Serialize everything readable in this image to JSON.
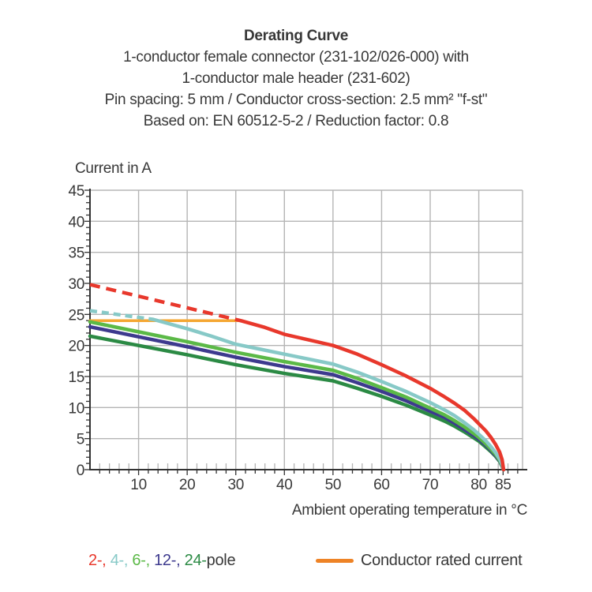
{
  "header": {
    "title": "Derating Curve",
    "lines": [
      "1-conductor female connector (231-102/026-000) with",
      "1-conductor male header (231-602)",
      "Pin spacing: 5 mm / Conductor cross-section: 2.5 mm² \"f-st\"",
      "Based on: EN 60512-5-2 / Reduction factor: 0.8"
    ]
  },
  "axes": {
    "y_title": "Current in A",
    "x_title": "Ambient operating temperature in °C"
  },
  "legend": {
    "poles": [
      {
        "label": "2-",
        "color": "#E8382C"
      },
      {
        "label": "4-",
        "color": "#87C9C7"
      },
      {
        "label": "6-",
        "color": "#5BB947"
      },
      {
        "label": "12-",
        "color": "#3D3A8E"
      },
      {
        "label": "24-",
        "color": "#2B8A44"
      }
    ],
    "separator": ", ",
    "poles_suffix": "pole",
    "rated_label": "Conductor rated current",
    "rated_swatch_color": "#EE8326"
  },
  "chart_data": {
    "type": "line",
    "title": "Derating Curve",
    "xlabel": "Ambient operating temperature in °C",
    "ylabel": "Current in A",
    "xlim": [
      0,
      89
    ],
    "ylim": [
      0,
      45
    ],
    "x_ticks": [
      10,
      20,
      30,
      40,
      50,
      60,
      70,
      80,
      85
    ],
    "x_gridlines": [
      10,
      20,
      30,
      40,
      50,
      60,
      70,
      80
    ],
    "x_minor_step": 2,
    "y_ticks": [
      0,
      5,
      10,
      15,
      20,
      25,
      30,
      35,
      40,
      45
    ],
    "y_minor_step": 1,
    "grid": true,
    "grid_color": "#B5B5B5",
    "axis_color": "#333333",
    "legend_position": "bottom",
    "series": [
      {
        "name": "Conductor rated current",
        "color": "#F5A733",
        "width": 3.5,
        "segments": [
          {
            "points": [
              [
                0,
                24
              ],
              [
                31,
                24
              ]
            ]
          }
        ]
      },
      {
        "name": "24-pole",
        "color": "#2B8A44",
        "width": 4.5,
        "segments": [
          {
            "points": [
              [
                0,
                21.5
              ],
              [
                10,
                20.0
              ],
              [
                20,
                18.5
              ],
              [
                30,
                16.9
              ],
              [
                40,
                15.5
              ],
              [
                50,
                14.3
              ],
              [
                55,
                13.1
              ],
              [
                60,
                11.8
              ],
              [
                65,
                10.4
              ],
              [
                70,
                8.8
              ],
              [
                73,
                7.8
              ],
              [
                75,
                7.0
              ],
              [
                77,
                6.1
              ],
              [
                79,
                5.1
              ],
              [
                80,
                4.6
              ],
              [
                81.5,
                3.6
              ],
              [
                82.5,
                2.9
              ],
              [
                83.5,
                2.1
              ],
              [
                84.3,
                1.3
              ],
              [
                84.8,
                0.5
              ],
              [
                85.1,
                0
              ]
            ]
          }
        ]
      },
      {
        "name": "12-pole",
        "color": "#3D3A8E",
        "width": 4.5,
        "segments": [
          {
            "points": [
              [
                0,
                23.0
              ],
              [
                10,
                21.4
              ],
              [
                20,
                19.8
              ],
              [
                30,
                18.1
              ],
              [
                40,
                16.6
              ],
              [
                50,
                15.3
              ],
              [
                55,
                14.0
              ],
              [
                60,
                12.6
              ],
              [
                65,
                11.1
              ],
              [
                70,
                9.4
              ],
              [
                73,
                8.4
              ],
              [
                75,
                7.5
              ],
              [
                77,
                6.5
              ],
              [
                79,
                5.5
              ],
              [
                80,
                4.9
              ],
              [
                81.5,
                3.9
              ],
              [
                82.5,
                3.1
              ],
              [
                83.5,
                2.2
              ],
              [
                84.3,
                1.4
              ],
              [
                84.8,
                0.6
              ],
              [
                85.1,
                0
              ]
            ]
          }
        ]
      },
      {
        "name": "6-pole",
        "color": "#5BB947",
        "width": 4.5,
        "segments": [
          {
            "points": [
              [
                0,
                23.8
              ],
              [
                10,
                22.2
              ],
              [
                20,
                20.6
              ],
              [
                30,
                18.9
              ],
              [
                40,
                17.4
              ],
              [
                50,
                16.0
              ],
              [
                55,
                14.7
              ],
              [
                60,
                13.2
              ],
              [
                65,
                11.7
              ],
              [
                70,
                9.9
              ],
              [
                73,
                8.8
              ],
              [
                75,
                7.9
              ],
              [
                77,
                6.9
              ],
              [
                79,
                5.8
              ],
              [
                80,
                5.2
              ],
              [
                81.5,
                4.1
              ],
              [
                82.5,
                3.3
              ],
              [
                83.5,
                2.4
              ],
              [
                84.3,
                1.5
              ],
              [
                84.8,
                0.7
              ],
              [
                85.1,
                0
              ]
            ]
          }
        ]
      },
      {
        "name": "4-pole",
        "color": "#87C9C7",
        "width": 4.5,
        "segments": [
          {
            "dash": "9 6",
            "points": [
              [
                0,
                25.6
              ],
              [
                13,
                24.2
              ]
            ]
          },
          {
            "points": [
              [
                13,
                24.2
              ],
              [
                20,
                22.7
              ],
              [
                25,
                21.5
              ],
              [
                30,
                20.2
              ],
              [
                35,
                19.4
              ],
              [
                40,
                18.6
              ],
              [
                45,
                17.8
              ],
              [
                50,
                17.0
              ],
              [
                55,
                15.7
              ],
              [
                60,
                14.2
              ],
              [
                65,
                12.6
              ],
              [
                70,
                10.8
              ],
              [
                73,
                9.6
              ],
              [
                75,
                8.7
              ],
              [
                77,
                7.6
              ],
              [
                79,
                6.4
              ],
              [
                80,
                5.7
              ],
              [
                81.5,
                4.6
              ],
              [
                82.5,
                3.7
              ],
              [
                83.5,
                2.7
              ],
              [
                84.3,
                1.7
              ],
              [
                84.8,
                0.8
              ],
              [
                85.1,
                0
              ]
            ]
          }
        ]
      },
      {
        "name": "2-pole",
        "color": "#E8382C",
        "width": 4.5,
        "segments": [
          {
            "dash": "13 8",
            "points": [
              [
                0,
                29.8
              ],
              [
                31,
                24
              ]
            ]
          },
          {
            "points": [
              [
                31,
                24
              ],
              [
                36,
                22.9
              ],
              [
                40,
                21.8
              ],
              [
                45,
                20.9
              ],
              [
                50,
                20.0
              ],
              [
                55,
                18.6
              ],
              [
                60,
                16.9
              ],
              [
                65,
                15.1
              ],
              [
                70,
                13.1
              ],
              [
                73,
                11.7
              ],
              [
                75,
                10.7
              ],
              [
                77,
                9.6
              ],
              [
                79,
                8.2
              ],
              [
                80,
                7.4
              ],
              [
                81.5,
                6.2
              ],
              [
                82.5,
                5.2
              ],
              [
                83.5,
                4.0
              ],
              [
                84.3,
                2.8
              ],
              [
                84.8,
                1.6
              ],
              [
                85.1,
                0
              ]
            ]
          }
        ]
      }
    ]
  }
}
